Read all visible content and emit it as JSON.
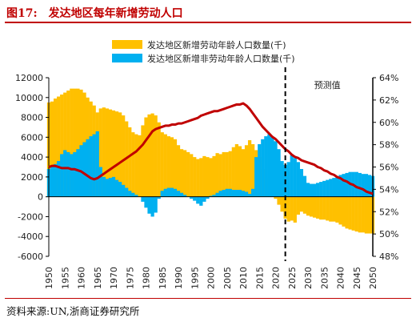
{
  "figure": {
    "label": "图17:",
    "title": "发达地区每年新增劳动人口"
  },
  "source": "资料来源:UN,浙商证券研究所",
  "chart_data": {
    "type": "bar",
    "forecast_label": "预测值",
    "forecast_start": 2023,
    "x": [
      1950,
      1951,
      1952,
      1953,
      1954,
      1955,
      1956,
      1957,
      1958,
      1959,
      1960,
      1961,
      1962,
      1963,
      1964,
      1965,
      1966,
      1967,
      1968,
      1969,
      1970,
      1971,
      1972,
      1973,
      1974,
      1975,
      1976,
      1977,
      1978,
      1979,
      1980,
      1981,
      1982,
      1983,
      1984,
      1985,
      1986,
      1987,
      1988,
      1989,
      1990,
      1991,
      1992,
      1993,
      1994,
      1995,
      1996,
      1997,
      1998,
      1999,
      2000,
      2001,
      2002,
      2003,
      2004,
      2005,
      2006,
      2007,
      2008,
      2009,
      2010,
      2011,
      2012,
      2013,
      2014,
      2015,
      2016,
      2017,
      2018,
      2019,
      2020,
      2021,
      2022,
      2023,
      2024,
      2025,
      2026,
      2027,
      2028,
      2029,
      2030,
      2031,
      2032,
      2033,
      2034,
      2035,
      2036,
      2037,
      2038,
      2039,
      2040,
      2041,
      2042,
      2043,
      2044,
      2045,
      2046,
      2047,
      2048,
      2049,
      2050
    ],
    "xticks": [
      1950,
      1955,
      1960,
      1965,
      1970,
      1975,
      1980,
      1985,
      1990,
      1995,
      2000,
      2005,
      2010,
      2015,
      2020,
      2025,
      2030,
      2035,
      2040,
      2045,
      2050
    ],
    "y_left": {
      "ticks": [
        -6000,
        -4000,
        -2000,
        0,
        2000,
        4000,
        6000,
        8000,
        10000,
        12000
      ],
      "range": [
        -6000,
        12000
      ]
    },
    "y_right": {
      "ticks": [
        "48%",
        "50%",
        "52%",
        "54%",
        "56%",
        "58%",
        "60%",
        "62%",
        "64%"
      ],
      "range": [
        48,
        64
      ]
    },
    "legend_position": "top-center",
    "series": [
      {
        "name": "发达地区新增劳动年龄人口数量(千)",
        "type": "bar",
        "color": "#FFC000",
        "values": [
          9500,
          9600,
          9900,
          10100,
          10300,
          10500,
          10700,
          10900,
          10900,
          10900,
          10800,
          10500,
          10000,
          9600,
          9200,
          8500,
          8900,
          9000,
          8900,
          8800,
          8700,
          8600,
          8500,
          8200,
          7600,
          7000,
          6500,
          6300,
          6200,
          7200,
          8000,
          8300,
          8400,
          8200,
          7500,
          6500,
          6300,
          6100,
          6000,
          5800,
          5200,
          4800,
          4700,
          4500,
          4300,
          4000,
          3800,
          3900,
          4100,
          4000,
          3900,
          4100,
          4400,
          4300,
          4500,
          4500,
          4600,
          5000,
          5300,
          5100,
          4800,
          5200,
          5700,
          5300,
          4700,
          4000,
          2800,
          1800,
          1200,
          700,
          -200,
          -800,
          -1500,
          -2200,
          -2500,
          -2400,
          -2600,
          -1800,
          -1500,
          -1700,
          -1900,
          -2000,
          -2100,
          -2200,
          -2300,
          -2300,
          -2400,
          -2500,
          -2500,
          -2600,
          -2800,
          -3000,
          -3200,
          -3300,
          -3400,
          -3500,
          -3600,
          -3600,
          -3700,
          -3700,
          -3700
        ]
      },
      {
        "name": "发达地区新增非劳动年龄人口数量(千)",
        "type": "bar",
        "color": "#00B0F0",
        "values": [
          2800,
          3000,
          3300,
          3600,
          4300,
          4700,
          4500,
          4300,
          4500,
          4800,
          5200,
          5500,
          5800,
          6100,
          6300,
          6600,
          3000,
          2000,
          1800,
          1900,
          2000,
          1700,
          1500,
          1200,
          900,
          600,
          400,
          200,
          0,
          -500,
          -1100,
          -1700,
          -2000,
          -1600,
          -200,
          600,
          800,
          900,
          900,
          800,
          600,
          400,
          200,
          0,
          -200,
          -400,
          -700,
          -900,
          -500,
          -200,
          100,
          200,
          400,
          600,
          700,
          800,
          800,
          700,
          700,
          700,
          600,
          500,
          300,
          800,
          4000,
          5300,
          5800,
          6100,
          6300,
          6000,
          5600,
          4800,
          3600,
          3200,
          3500,
          4200,
          3900,
          3500,
          2800,
          2100,
          1400,
          1300,
          1300,
          1400,
          1500,
          1600,
          1700,
          1800,
          1900,
          2000,
          2200,
          2300,
          2400,
          2500,
          2500,
          2500,
          2400,
          2300,
          2300,
          2200,
          2100
        ]
      },
      {
        "name": "劳动年龄人口占比",
        "type": "line",
        "axis": "right",
        "color": "#C00000",
        "values": [
          56.0,
          56.1,
          56.1,
          56.0,
          55.9,
          55.9,
          55.9,
          55.8,
          55.8,
          55.7,
          55.6,
          55.4,
          55.2,
          55.0,
          54.9,
          55.0,
          55.2,
          55.4,
          55.6,
          55.8,
          56.0,
          56.2,
          56.4,
          56.6,
          56.8,
          57.0,
          57.2,
          57.4,
          57.7,
          58.0,
          58.4,
          58.8,
          59.2,
          59.4,
          59.5,
          59.6,
          59.7,
          59.7,
          59.8,
          59.8,
          59.9,
          59.9,
          60.0,
          60.1,
          60.2,
          60.3,
          60.4,
          60.6,
          60.7,
          60.8,
          60.9,
          61.0,
          61.0,
          61.1,
          61.2,
          61.3,
          61.4,
          61.5,
          61.6,
          61.6,
          61.7,
          61.5,
          61.2,
          60.8,
          60.4,
          60.0,
          59.6,
          59.3,
          59.0,
          58.7,
          58.5,
          58.2,
          57.9,
          57.6,
          57.4,
          57.1,
          56.9,
          56.8,
          56.6,
          56.5,
          56.4,
          56.3,
          56.2,
          56.0,
          55.9,
          55.7,
          55.6,
          55.4,
          55.3,
          55.1,
          55.0,
          54.8,
          54.7,
          54.5,
          54.4,
          54.2,
          54.1,
          54.0,
          53.8,
          53.7,
          53.6
        ]
      }
    ]
  }
}
